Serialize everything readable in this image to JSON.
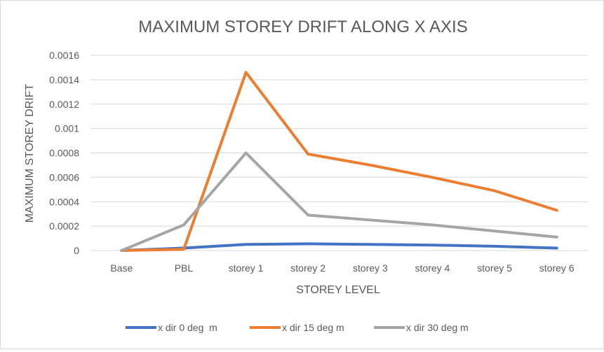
{
  "chart_data": {
    "type": "line",
    "title": "MAXIMUM STOREY DRIFT ALONG X AXIS",
    "xlabel": "STOREY LEVEL",
    "ylabel": "MAXIMUM STOREY DRIFT",
    "categories": [
      "Base",
      "PBL",
      "storey 1",
      "storey 2",
      "storey 3",
      "storey 4",
      "storey 5",
      "storey 6"
    ],
    "ylim": [
      0,
      0.0016
    ],
    "yticks": [
      "0",
      "0.0002",
      "0.0004",
      "0.0006",
      "0.0008",
      "0.001",
      "0.0012",
      "0.0014",
      "0.0016"
    ],
    "grid": true,
    "legend_position": "bottom",
    "series": [
      {
        "name": "x dir 0 deg  m",
        "color": "#4472c4",
        "values": [
          0,
          2e-05,
          5e-05,
          5.5e-05,
          5e-05,
          4.5e-05,
          3.5e-05,
          2e-05
        ]
      },
      {
        "name": "x dir 15 deg m",
        "color": "#ed7d31",
        "values": [
          0,
          1e-05,
          0.00146,
          0.00079,
          0.0007,
          0.0006,
          0.00049,
          0.00033
        ]
      },
      {
        "name": "x dir 30 deg m",
        "color": "#a5a5a5",
        "values": [
          0,
          0.00021,
          0.0008,
          0.00029,
          0.00025,
          0.00021,
          0.00016,
          0.00011
        ]
      }
    ]
  }
}
